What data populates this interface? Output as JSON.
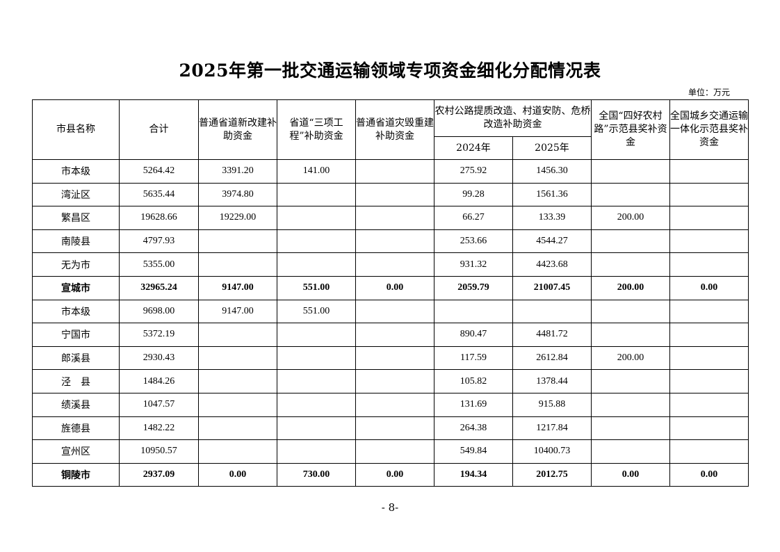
{
  "title": "2025年第一批交通运输领域专项资金细化分配情况表",
  "unit": "单位：万元",
  "headers": {
    "name": "市县名称",
    "total": "合计",
    "c1": "普通省道新改建补助资金",
    "c2": "省道“三项工程”补助资金",
    "c3": "普通省道灾毁重建补助资金",
    "c4": "农村公路提质改造、村道安防、危桥改造补助资金",
    "c4a": "2024年",
    "c4b": "2025年",
    "c5": "全国“四好农村路”示范县奖补资金",
    "c6": "全国城乡交通运输一体化示范县奖补资金"
  },
  "rows": [
    {
      "name": "市本级",
      "total": "5264.42",
      "c1": "3391.20",
      "c2": "141.00",
      "c3": "",
      "c4a": "275.92",
      "c4b": "1456.30",
      "c5": "",
      "c6": "",
      "subtotal": false
    },
    {
      "name": "湾沚区",
      "total": "5635.44",
      "c1": "3974.80",
      "c2": "",
      "c3": "",
      "c4a": "99.28",
      "c4b": "1561.36",
      "c5": "",
      "c6": "",
      "subtotal": false
    },
    {
      "name": "繁昌区",
      "total": "19628.66",
      "c1": "19229.00",
      "c2": "",
      "c3": "",
      "c4a": "66.27",
      "c4b": "133.39",
      "c5": "200.00",
      "c6": "",
      "subtotal": false
    },
    {
      "name": "南陵县",
      "total": "4797.93",
      "c1": "",
      "c2": "",
      "c3": "",
      "c4a": "253.66",
      "c4b": "4544.27",
      "c5": "",
      "c6": "",
      "subtotal": false
    },
    {
      "name": "无为市",
      "total": "5355.00",
      "c1": "",
      "c2": "",
      "c3": "",
      "c4a": "931.32",
      "c4b": "4423.68",
      "c5": "",
      "c6": "",
      "subtotal": false
    },
    {
      "name": "宣城市",
      "total": "32965.24",
      "c1": "9147.00",
      "c2": "551.00",
      "c3": "0.00",
      "c4a": "2059.79",
      "c4b": "21007.45",
      "c5": "200.00",
      "c6": "0.00",
      "subtotal": true
    },
    {
      "name": "市本级",
      "total": "9698.00",
      "c1": "9147.00",
      "c2": "551.00",
      "c3": "",
      "c4a": "",
      "c4b": "",
      "c5": "",
      "c6": "",
      "subtotal": false
    },
    {
      "name": "宁国市",
      "total": "5372.19",
      "c1": "",
      "c2": "",
      "c3": "",
      "c4a": "890.47",
      "c4b": "4481.72",
      "c5": "",
      "c6": "",
      "subtotal": false
    },
    {
      "name": "郎溪县",
      "total": "2930.43",
      "c1": "",
      "c2": "",
      "c3": "",
      "c4a": "117.59",
      "c4b": "2612.84",
      "c5": "200.00",
      "c6": "",
      "subtotal": false
    },
    {
      "name": "泾　县",
      "total": "1484.26",
      "c1": "",
      "c2": "",
      "c3": "",
      "c4a": "105.82",
      "c4b": "1378.44",
      "c5": "",
      "c6": "",
      "subtotal": false
    },
    {
      "name": "绩溪县",
      "total": "1047.57",
      "c1": "",
      "c2": "",
      "c3": "",
      "c4a": "131.69",
      "c4b": "915.88",
      "c5": "",
      "c6": "",
      "subtotal": false
    },
    {
      "name": "旌德县",
      "total": "1482.22",
      "c1": "",
      "c2": "",
      "c3": "",
      "c4a": "264.38",
      "c4b": "1217.84",
      "c5": "",
      "c6": "",
      "subtotal": false
    },
    {
      "name": "宣州区",
      "total": "10950.57",
      "c1": "",
      "c2": "",
      "c3": "",
      "c4a": "549.84",
      "c4b": "10400.73",
      "c5": "",
      "c6": "",
      "subtotal": false
    },
    {
      "name": "铜陵市",
      "total": "2937.09",
      "c1": "0.00",
      "c2": "730.00",
      "c3": "0.00",
      "c4a": "194.34",
      "c4b": "2012.75",
      "c5": "0.00",
      "c6": "0.00",
      "subtotal": true
    }
  ],
  "page_number": "- 8-"
}
